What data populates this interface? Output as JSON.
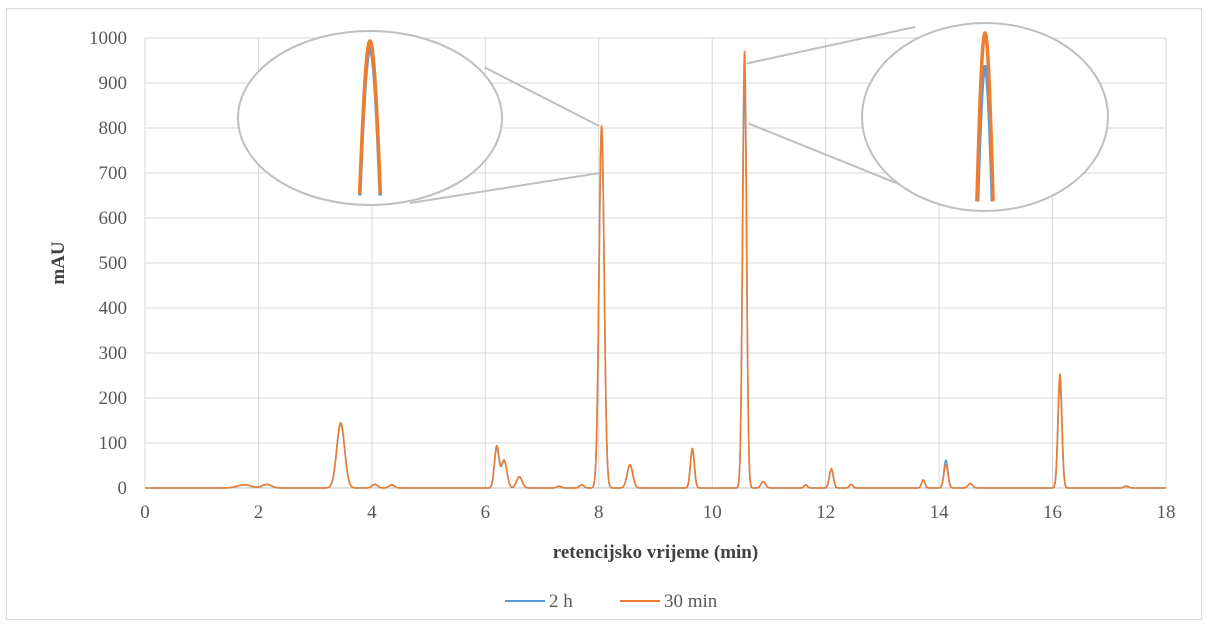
{
  "chart_data": {
    "type": "line",
    "title": "",
    "xlabel": "retencijsko vrijeme (min)",
    "ylabel": "mAU",
    "xlim": [
      0,
      18
    ],
    "ylim": [
      0,
      1000
    ],
    "x_ticks": [
      0,
      2,
      4,
      6,
      8,
      10,
      12,
      14,
      16,
      18
    ],
    "y_ticks": [
      0,
      100,
      200,
      300,
      400,
      500,
      600,
      700,
      800,
      900,
      1000
    ],
    "grid": true,
    "legend_position": "bottom",
    "series": [
      {
        "name": "2 h",
        "color": "#5b9bd5",
        "peaks": [
          {
            "t": 1.75,
            "h": 7,
            "w": 0.12
          },
          {
            "t": 2.15,
            "h": 8,
            "w": 0.08
          },
          {
            "t": 3.45,
            "h": 142,
            "w": 0.07
          },
          {
            "t": 4.05,
            "h": 8,
            "w": 0.05
          },
          {
            "t": 4.35,
            "h": 7,
            "w": 0.05
          },
          {
            "t": 6.2,
            "h": 88,
            "w": 0.04
          },
          {
            "t": 6.33,
            "h": 60,
            "w": 0.05
          },
          {
            "t": 6.6,
            "h": 25,
            "w": 0.05
          },
          {
            "t": 7.3,
            "h": 4,
            "w": 0.04
          },
          {
            "t": 7.7,
            "h": 7,
            "w": 0.04
          },
          {
            "t": 8.05,
            "h": 795,
            "w": 0.045
          },
          {
            "t": 8.55,
            "h": 50,
            "w": 0.05
          },
          {
            "t": 9.65,
            "h": 85,
            "w": 0.035
          },
          {
            "t": 10.57,
            "h": 920,
            "w": 0.035
          },
          {
            "t": 10.9,
            "h": 14,
            "w": 0.04
          },
          {
            "t": 11.65,
            "h": 7,
            "w": 0.03
          },
          {
            "t": 12.1,
            "h": 42,
            "w": 0.035
          },
          {
            "t": 12.45,
            "h": 8,
            "w": 0.03
          },
          {
            "t": 13.72,
            "h": 18,
            "w": 0.03
          },
          {
            "t": 14.12,
            "h": 62,
            "w": 0.035
          },
          {
            "t": 14.55,
            "h": 10,
            "w": 0.04
          },
          {
            "t": 16.13,
            "h": 237,
            "w": 0.035
          },
          {
            "t": 17.3,
            "h": 4,
            "w": 0.04
          }
        ]
      },
      {
        "name": "30 min",
        "color": "#ed7d31",
        "peaks": [
          {
            "t": 1.75,
            "h": 7,
            "w": 0.12
          },
          {
            "t": 2.15,
            "h": 8,
            "w": 0.08
          },
          {
            "t": 3.45,
            "h": 145,
            "w": 0.07
          },
          {
            "t": 4.05,
            "h": 8,
            "w": 0.05
          },
          {
            "t": 4.35,
            "h": 7,
            "w": 0.05
          },
          {
            "t": 6.2,
            "h": 92,
            "w": 0.04
          },
          {
            "t": 6.33,
            "h": 62,
            "w": 0.05
          },
          {
            "t": 6.6,
            "h": 25,
            "w": 0.05
          },
          {
            "t": 7.3,
            "h": 4,
            "w": 0.04
          },
          {
            "t": 7.7,
            "h": 7,
            "w": 0.04
          },
          {
            "t": 8.05,
            "h": 805,
            "w": 0.045
          },
          {
            "t": 8.55,
            "h": 52,
            "w": 0.05
          },
          {
            "t": 9.65,
            "h": 88,
            "w": 0.035
          },
          {
            "t": 10.57,
            "h": 970,
            "w": 0.035
          },
          {
            "t": 10.9,
            "h": 14,
            "w": 0.04
          },
          {
            "t": 11.65,
            "h": 7,
            "w": 0.03
          },
          {
            "t": 12.1,
            "h": 43,
            "w": 0.035
          },
          {
            "t": 12.45,
            "h": 8,
            "w": 0.03
          },
          {
            "t": 13.72,
            "h": 18,
            "w": 0.03
          },
          {
            "t": 14.12,
            "h": 52,
            "w": 0.035
          },
          {
            "t": 14.55,
            "h": 10,
            "w": 0.04
          },
          {
            "t": 16.13,
            "h": 253,
            "w": 0.035
          },
          {
            "t": 17.3,
            "h": 4,
            "w": 0.04
          }
        ]
      }
    ],
    "insets": [
      {
        "peak_t": 8.05,
        "side": "left"
      },
      {
        "peak_t": 10.57,
        "side": "right"
      }
    ]
  }
}
